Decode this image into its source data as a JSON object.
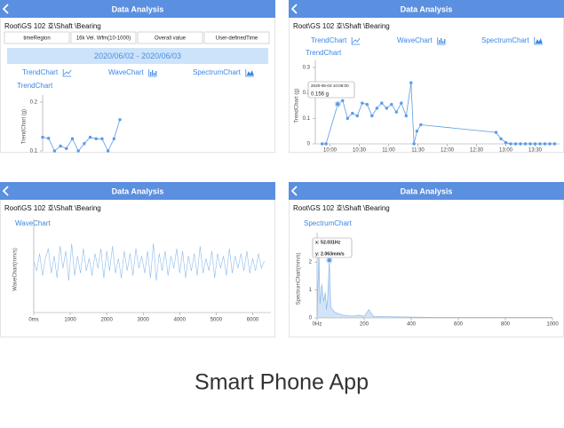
{
  "caption": "Smart Phone App",
  "screens": [
    {
      "header": "Data Analysis",
      "path": "Root\\GS 102 호\\Shaft \\Bearing",
      "tabs": [
        "timeRegion",
        "16k Vel. Wfm(10-1000)",
        "Overall value",
        "User-definedTime"
      ],
      "date_range": "2020/06/02 - 2020/06/03",
      "chart_links": [
        "TrendChart",
        "WaveChart",
        "SpectrumChart"
      ],
      "chart_title": "TrendChart",
      "chart": {
        "type": "line",
        "y_label": "TrendChart (g)",
        "color": "#5b9be6",
        "markers": true,
        "values": [
          0.128,
          0.126,
          0.1,
          0.11,
          0.105,
          0.125,
          0.1,
          0.115,
          0.128,
          0.125,
          0.125,
          0.1,
          0.125,
          0.164
        ],
        "ylim": [
          0.1,
          0.2
        ],
        "yticks": [
          0.1,
          0.2
        ]
      }
    },
    {
      "header": "Data Analysis",
      "path": "Root\\GS 102 호\\Shaft \\Bearing",
      "chart_links": [
        "TrendChart",
        "WaveChart",
        "SpectrumChart"
      ],
      "chart_title": "TrendChart",
      "chart": {
        "type": "line",
        "y_label": "TrendChart (g)",
        "color": "#5b9be6",
        "markers": true,
        "x": [
          "09:52",
          "09:56",
          "10:08",
          "10:13",
          "10:18",
          "10:23",
          "10:28",
          "10:33",
          "10:38",
          "10:43",
          "10:48",
          "10:53",
          "10:58",
          "11:03",
          "11:08",
          "11:13",
          "11:18",
          "11:23",
          "11:26",
          "11:29",
          "11:33",
          "12:50",
          "12:55",
          "13:00",
          "13:05",
          "13:10",
          "13:15",
          "13:20",
          "13:25",
          "13:30",
          "13:35",
          "13:40",
          "13:45",
          "13:50"
        ],
        "values": [
          0,
          0,
          0.156,
          0.17,
          0.1,
          0.12,
          0.11,
          0.16,
          0.155,
          0.11,
          0.14,
          0.16,
          0.14,
          0.155,
          0.125,
          0.16,
          0.11,
          0.24,
          0,
          0.05,
          0.075,
          0.045,
          0.02,
          0.005,
          0,
          0,
          0,
          0,
          0,
          0,
          0,
          0,
          0,
          0
        ],
        "xlim": [
          "09:45",
          "13:55"
        ],
        "xticks": [
          "10:00",
          "10:30",
          "11:00",
          "11:30",
          "12:00",
          "12:30",
          "13:00",
          "13:30"
        ],
        "ylim": [
          0,
          0.3
        ],
        "yticks": [
          0,
          0.1,
          0.2,
          0.3
        ],
        "tooltip": [
          "2020-06-03 10:08:00",
          "0.156 g"
        ]
      }
    },
    {
      "header": "Data Analysis",
      "path": "Root\\GS 102 호\\Shaft \\Bearing",
      "chart_title": "WaveChart",
      "chart": {
        "type": "line",
        "y_label": "WaveChart(mm/s)",
        "color": "#8cbcec",
        "x": [
          0,
          80,
          160,
          240,
          320,
          400,
          480,
          560,
          640,
          720,
          800,
          880,
          960,
          1040,
          1120,
          1200,
          1280,
          1360,
          1440,
          1520,
          1600,
          1680,
          1760,
          1840,
          1920,
          2000,
          2080,
          2160,
          2240,
          2320,
          2400,
          2480,
          2560,
          2640,
          2720,
          2800,
          2880,
          2960,
          3040,
          3120,
          3200,
          3280,
          3360,
          3440,
          3520,
          3600,
          3680,
          3760,
          3840,
          3920,
          4000,
          4080,
          4160,
          4240,
          4320,
          4400,
          4480,
          4560,
          4640,
          4720,
          4800,
          4880,
          4960,
          5040,
          5120,
          5200,
          5280,
          5360,
          5440,
          5520,
          5600,
          5680,
          5760,
          5840,
          5920,
          6000,
          6080,
          6160,
          6240,
          6320
        ],
        "values": [
          0.1,
          -0.3,
          0.4,
          -0.5,
          0.2,
          0.6,
          -0.4,
          0.3,
          -0.6,
          0.7,
          -0.2,
          0.5,
          -0.7,
          0.8,
          -0.5,
          0.3,
          -0.4,
          0.6,
          -0.3,
          0.2,
          -0.5,
          0.4,
          -0.2,
          0.6,
          -0.6,
          0.5,
          -0.3,
          0.7,
          -0.4,
          0.2,
          -0.6,
          0.5,
          -0.3,
          0.4,
          -0.5,
          0.6,
          -0.2,
          0.3,
          -0.4,
          0.5,
          -0.6,
          0.8,
          -0.7,
          0.4,
          -0.3,
          0.5,
          -0.5,
          0.3,
          -0.2,
          0.6,
          -0.4,
          0.5,
          -0.6,
          0.3,
          -0.3,
          0.4,
          -0.5,
          0.7,
          -0.4,
          0.2,
          -0.3,
          0.5,
          -0.6,
          0.4,
          -0.2,
          0.3,
          -0.5,
          0.6,
          -0.4,
          0.3,
          -0.2,
          0.4,
          -0.3,
          0.5,
          -0.4,
          0.2,
          -0.3,
          0.4,
          -0.2,
          0.1
        ],
        "xlim": [
          0,
          6500
        ],
        "xticks": [
          {
            "value": 0,
            "label": "0ms"
          },
          1000,
          2000,
          3000,
          4000,
          5000,
          6000
        ],
        "ylim": [
          -2,
          1.5
        ]
      }
    },
    {
      "header": "Data Analysis",
      "path": "Root\\GS 102 호\\Shaft \\Bearing",
      "chart_title": "SpectrumChart",
      "chart": {
        "type": "area",
        "y_label": "SpectrumChart(mm/s)",
        "color": "#7fb2ea",
        "x": [
          0,
          8,
          12,
          20,
          28,
          35,
          40,
          45,
          52.031,
          58,
          65,
          75,
          90,
          110,
          130,
          150,
          180,
          200,
          220,
          240,
          300,
          400,
          500,
          600,
          700,
          800,
          900,
          1000
        ],
        "values": [
          0.1,
          2.4,
          0.5,
          1.2,
          0.6,
          0.9,
          0.3,
          0.7,
          2.063,
          0.4,
          0.3,
          0.2,
          0.15,
          0.1,
          0.08,
          0.06,
          0.1,
          0.05,
          0.3,
          0.05,
          0.04,
          0.03,
          0.02,
          0.02,
          0.02,
          0.02,
          0.02,
          0.02
        ],
        "xlim": [
          0,
          1000
        ],
        "xticks": [
          {
            "value": 0,
            "label": "0Hz"
          },
          200,
          400,
          600,
          800,
          1000
        ],
        "ylim": [
          0,
          2.8
        ],
        "yticks": [
          0,
          1,
          2
        ],
        "tooltip": [
          "x: 52.031Hz",
          "y: 2.063mm/s"
        ]
      }
    }
  ]
}
